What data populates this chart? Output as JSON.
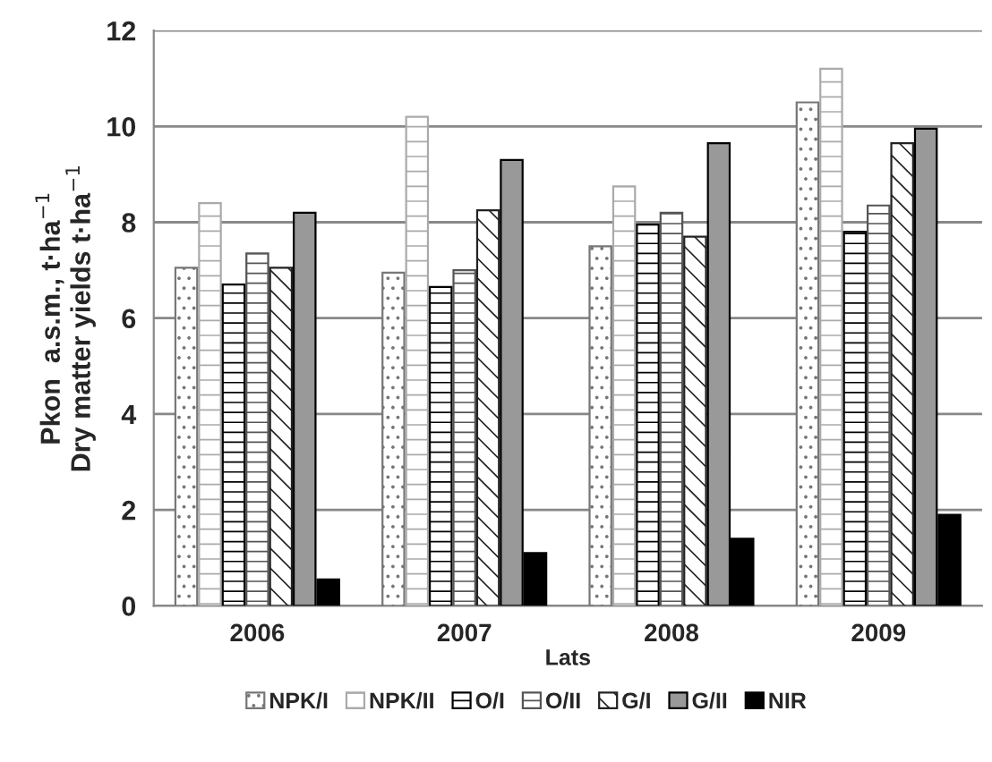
{
  "chart_data": {
    "type": "bar",
    "ylabel": "Pkon  a.s.m., t·ha$^{−1}$\nDry matter yields t·ha$^{−1}$",
    "xlabel": "Lats",
    "categories": [
      "2006",
      "2007",
      "2008",
      "2009"
    ],
    "series": [
      {
        "name": "NPK/I",
        "color": "#777777",
        "values": [
          7.05,
          6.95,
          7.5,
          10.5
        ]
      },
      {
        "name": "NPK/II",
        "color": "#aaaaaa",
        "values": [
          8.4,
          10.2,
          8.75,
          11.2
        ]
      },
      {
        "name": "O/I",
        "color": "#000000",
        "values": [
          6.7,
          6.65,
          7.95,
          7.8
        ]
      },
      {
        "name": "O/II",
        "color": "#555555",
        "values": [
          7.35,
          7.0,
          8.2,
          8.35
        ]
      },
      {
        "name": "G/I",
        "color": "#222222",
        "values": [
          7.05,
          8.25,
          7.7,
          9.65
        ]
      },
      {
        "name": "G/II",
        "color": "#999999",
        "values": [
          8.2,
          9.3,
          9.65,
          9.95
        ]
      },
      {
        "name": "NIR",
        "color": "#000000",
        "values": [
          0.55,
          1.1,
          1.4,
          1.9
        ]
      }
    ],
    "ylim": [
      0,
      12
    ],
    "yticks": [
      0,
      2,
      4,
      6,
      8,
      10,
      12
    ],
    "grid": "y",
    "legend": "bottom"
  }
}
